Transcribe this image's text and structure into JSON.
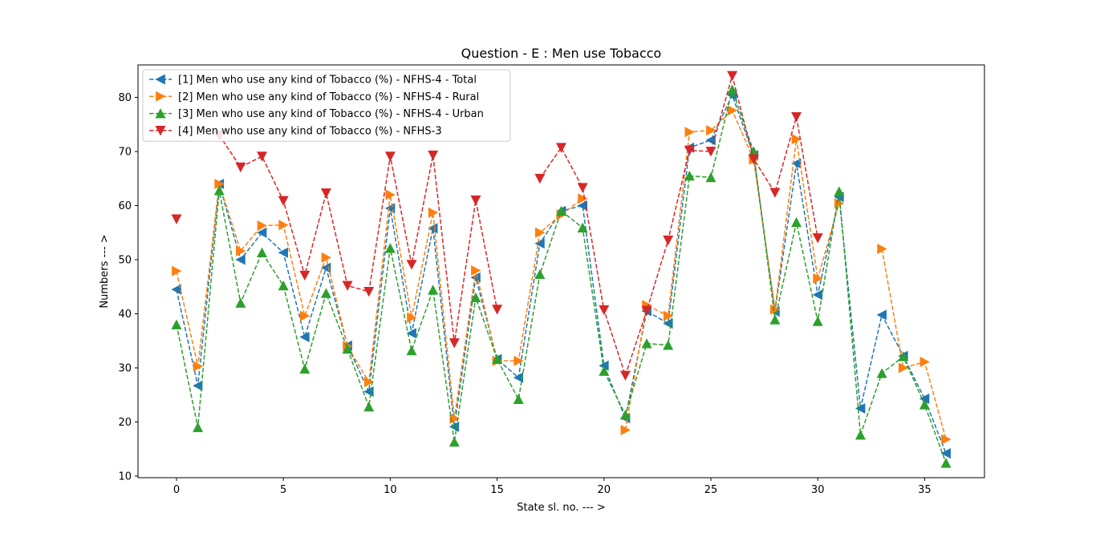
{
  "chart_data": {
    "type": "line",
    "title": "Question - E : Men use Tobacco",
    "xlabel": "State sl. no. --- >",
    "ylabel": "Numbers --- >",
    "xlim": [
      -1.8,
      37.8
    ],
    "ylim": [
      9.7,
      86.0
    ],
    "xticks": [
      0,
      5,
      10,
      15,
      20,
      25,
      30,
      35
    ],
    "yticks": [
      10,
      20,
      30,
      40,
      50,
      60,
      70,
      80
    ],
    "grid": false,
    "legend_position": "upper left",
    "x": [
      0,
      1,
      2,
      3,
      4,
      5,
      6,
      7,
      8,
      9,
      10,
      11,
      12,
      13,
      14,
      15,
      16,
      17,
      18,
      19,
      20,
      21,
      22,
      23,
      24,
      25,
      26,
      27,
      28,
      29,
      30,
      31,
      32,
      33,
      34,
      35,
      36
    ],
    "series": [
      {
        "name": "[1] Men who use any kind of Tobacco (%) - NFHS-4 - Total",
        "color": "#1f77b4",
        "marker": "triangle-left",
        "values": [
          44.5,
          26.7,
          64.0,
          50.0,
          55.0,
          51.3,
          35.7,
          48.5,
          34.1,
          25.6,
          59.5,
          36.4,
          55.8,
          19.1,
          46.7,
          31.6,
          28.2,
          53.0,
          59.0,
          60.0,
          30.4,
          20.7,
          40.5,
          38.2,
          70.7,
          72.1,
          80.4,
          69.3,
          40.4,
          67.8,
          43.5,
          61.6,
          22.5,
          39.8,
          32.2,
          24.3,
          14.2
        ]
      },
      {
        "name": "[2] Men who use any kind of Tobacco (%) - NFHS-4 - Rural",
        "color": "#ff7f0e",
        "marker": "triangle-right",
        "values": [
          47.9,
          30.3,
          64.0,
          51.6,
          56.3,
          56.4,
          39.6,
          50.4,
          34.0,
          27.4,
          62.0,
          39.3,
          58.7,
          20.6,
          48.0,
          31.3,
          31.3,
          55.0,
          58.3,
          61.3,
          null,
          18.5,
          41.6,
          39.6,
          73.6,
          73.9,
          77.6,
          68.5,
          40.8,
          72.3,
          46.5,
          60.4,
          null,
          52.0,
          30.0,
          31.1,
          16.8
        ]
      },
      {
        "name": "[3] Men who use any kind of Tobacco (%) - NFHS-4 - Urban",
        "color": "#2ca02c",
        "marker": "triangle-up",
        "values": [
          38.0,
          19.0,
          62.8,
          42.0,
          51.3,
          45.2,
          29.8,
          43.8,
          33.5,
          22.8,
          52.1,
          33.2,
          44.4,
          16.3,
          43.0,
          31.6,
          24.2,
          47.3,
          59.0,
          55.9,
          29.4,
          21.3,
          34.5,
          34.2,
          65.5,
          65.2,
          81.4,
          70.0,
          38.9,
          56.9,
          38.6,
          62.6,
          17.6,
          29.0,
          32.1,
          23.2,
          12.4
        ]
      },
      {
        "name": "[4] Men who use any kind of Tobacco (%) - NFHS-3",
        "color": "#d62728",
        "marker": "triangle-down",
        "values": [
          57.5,
          null,
          73.0,
          67.1,
          69.1,
          60.9,
          47.1,
          62.3,
          45.2,
          44.1,
          69.1,
          49.1,
          69.3,
          34.6,
          61.0,
          40.8,
          null,
          65.0,
          70.7,
          63.3,
          40.7,
          28.6,
          40.6,
          53.6,
          70.2,
          70.0,
          84.0,
          68.6,
          62.4,
          76.4,
          54.0,
          null,
          null,
          null,
          null,
          null,
          null
        ]
      }
    ]
  }
}
